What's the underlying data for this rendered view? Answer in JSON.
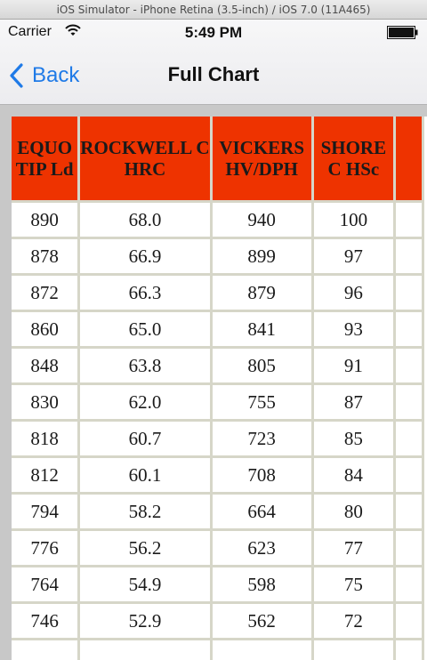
{
  "simulator": {
    "title": "iOS Simulator - iPhone Retina (3.5-inch) / iOS 7.0 (11A465)"
  },
  "status_bar": {
    "carrier": "Carrier",
    "time": "5:49 PM"
  },
  "nav": {
    "back_label": "Back",
    "title": "Full Chart"
  },
  "colors": {
    "header_fill": "#ee3300",
    "accent": "#1f7ae7"
  },
  "table": {
    "headers": [
      "EQUO TIP Ld",
      "ROCKWELL C HRC",
      "VICKERS HV/DPH",
      "SHORE C HSc",
      ""
    ],
    "rows": [
      [
        "890",
        "68.0",
        "940",
        "100",
        ""
      ],
      [
        "878",
        "66.9",
        "899",
        "97",
        ""
      ],
      [
        "872",
        "66.3",
        "879",
        "96",
        ""
      ],
      [
        "860",
        "65.0",
        "841",
        "93",
        ""
      ],
      [
        "848",
        "63.8",
        "805",
        "91",
        ""
      ],
      [
        "830",
        "62.0",
        "755",
        "87",
        ""
      ],
      [
        "818",
        "60.7",
        "723",
        "85",
        ""
      ],
      [
        "812",
        "60.1",
        "708",
        "84",
        ""
      ],
      [
        "794",
        "58.2",
        "664",
        "80",
        ""
      ],
      [
        "776",
        "56.2",
        "623",
        "77",
        ""
      ],
      [
        "764",
        "54.9",
        "598",
        "75",
        ""
      ],
      [
        "746",
        "52.9",
        "562",
        "72",
        ""
      ],
      [
        "",
        "",
        "",
        "",
        ""
      ]
    ]
  }
}
